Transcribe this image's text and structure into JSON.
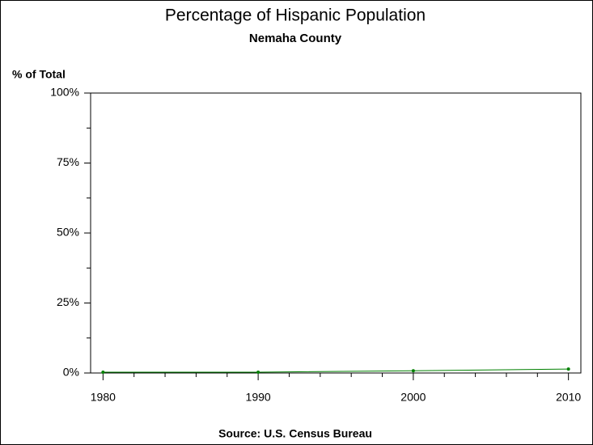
{
  "chart_data": {
    "type": "line",
    "title": "Percentage of Hispanic Population",
    "subtitle": "Nemaha County",
    "y_label": "% of Total",
    "source": "Source: U.S. Census Bureau",
    "x": [
      1980,
      1990,
      2000,
      2010
    ],
    "series": [
      {
        "name": "Nemaha County",
        "color": "#008000",
        "values": [
          0.3,
          0.3,
          0.8,
          1.4
        ]
      }
    ],
    "xlim": [
      1979.2,
      2010.8
    ],
    "xticks": [
      1980,
      1990,
      2000,
      2010
    ],
    "ylim": [
      0,
      100
    ],
    "yticks": [
      {
        "value": 0,
        "label": "0%"
      },
      {
        "value": 25,
        "label": "25%"
      },
      {
        "value": 50,
        "label": "50%"
      },
      {
        "value": 75,
        "label": "75%"
      },
      {
        "value": 100,
        "label": "100%"
      }
    ]
  }
}
